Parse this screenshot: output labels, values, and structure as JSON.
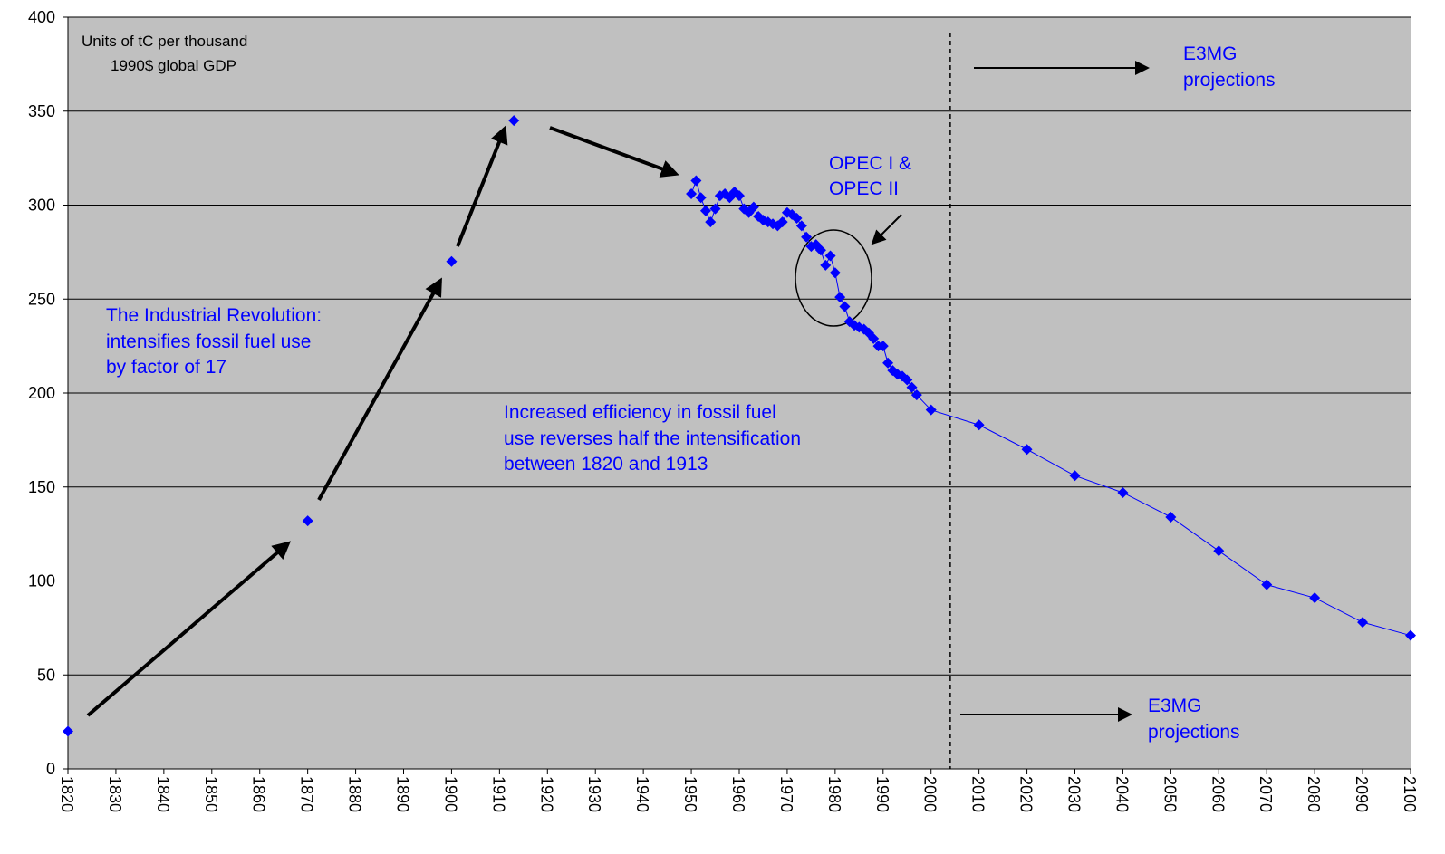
{
  "chart_data": {
    "type": "line",
    "xlim": [
      1820,
      2100
    ],
    "ylim": [
      0,
      400
    ],
    "xticks": [
      1820,
      1830,
      1840,
      1850,
      1860,
      1870,
      1880,
      1890,
      1900,
      1910,
      1920,
      1930,
      1940,
      1950,
      1960,
      1970,
      1980,
      1990,
      2000,
      2010,
      2020,
      2030,
      2040,
      2050,
      2060,
      2070,
      2080,
      2090,
      2100
    ],
    "yticks": [
      0,
      50,
      100,
      150,
      200,
      250,
      300,
      350,
      400
    ],
    "grid": true,
    "series": [
      {
        "color": "#0000ff",
        "line": false,
        "x": [
          1820,
          1870,
          1900,
          1913
        ],
        "values": [
          20,
          132,
          270,
          345
        ]
      },
      {
        "color": "#0000ff",
        "line": true,
        "x": [
          1950,
          1951,
          1952,
          1953,
          1954,
          1955,
          1956,
          1957,
          1958,
          1959,
          1960,
          1961,
          1962,
          1963,
          1964,
          1965,
          1966,
          1967,
          1968,
          1969,
          1970,
          1971,
          1972,
          1973,
          1974,
          1975,
          1976,
          1977,
          1978,
          1979,
          1980,
          1981,
          1982,
          1983,
          1984,
          1985,
          1986,
          1987,
          1988,
          1989,
          1990,
          1991,
          1992,
          1993,
          1994,
          1995,
          1996,
          1997,
          2000,
          2010,
          2020,
          2030,
          2040,
          2050,
          2060,
          2070,
          2080,
          2090,
          2100
        ],
        "values": [
          306,
          313,
          304,
          297,
          291,
          298,
          305,
          306,
          304,
          307,
          305,
          298,
          296,
          299,
          294,
          292,
          291,
          290,
          289,
          291,
          296,
          295,
          293,
          289,
          283,
          278,
          279,
          276,
          268,
          273,
          264,
          251,
          246,
          238,
          236,
          235,
          234,
          232,
          229,
          225,
          225,
          216,
          212,
          210,
          209,
          207,
          203,
          199,
          191,
          183,
          170,
          156,
          147,
          134,
          116,
          98,
          91,
          78,
          71
        ]
      }
    ],
    "divider_x": 2004,
    "annotations": {
      "units": [
        "Units of tC per thousand",
        "1990$ global GDP"
      ],
      "projections_top": [
        "E3MG",
        "projections"
      ],
      "opec": [
        "OPEC I &",
        "OPEC II"
      ],
      "industrial": [
        "The Industrial Revolution:",
        "intensifies fossil fuel use",
        "by factor of 17"
      ],
      "efficiency": [
        "Increased efficiency in fossil fuel",
        "use reverses half the intensification",
        "between 1820 and 1913"
      ],
      "projections_bottom": [
        "E3MG",
        "projections"
      ]
    }
  }
}
